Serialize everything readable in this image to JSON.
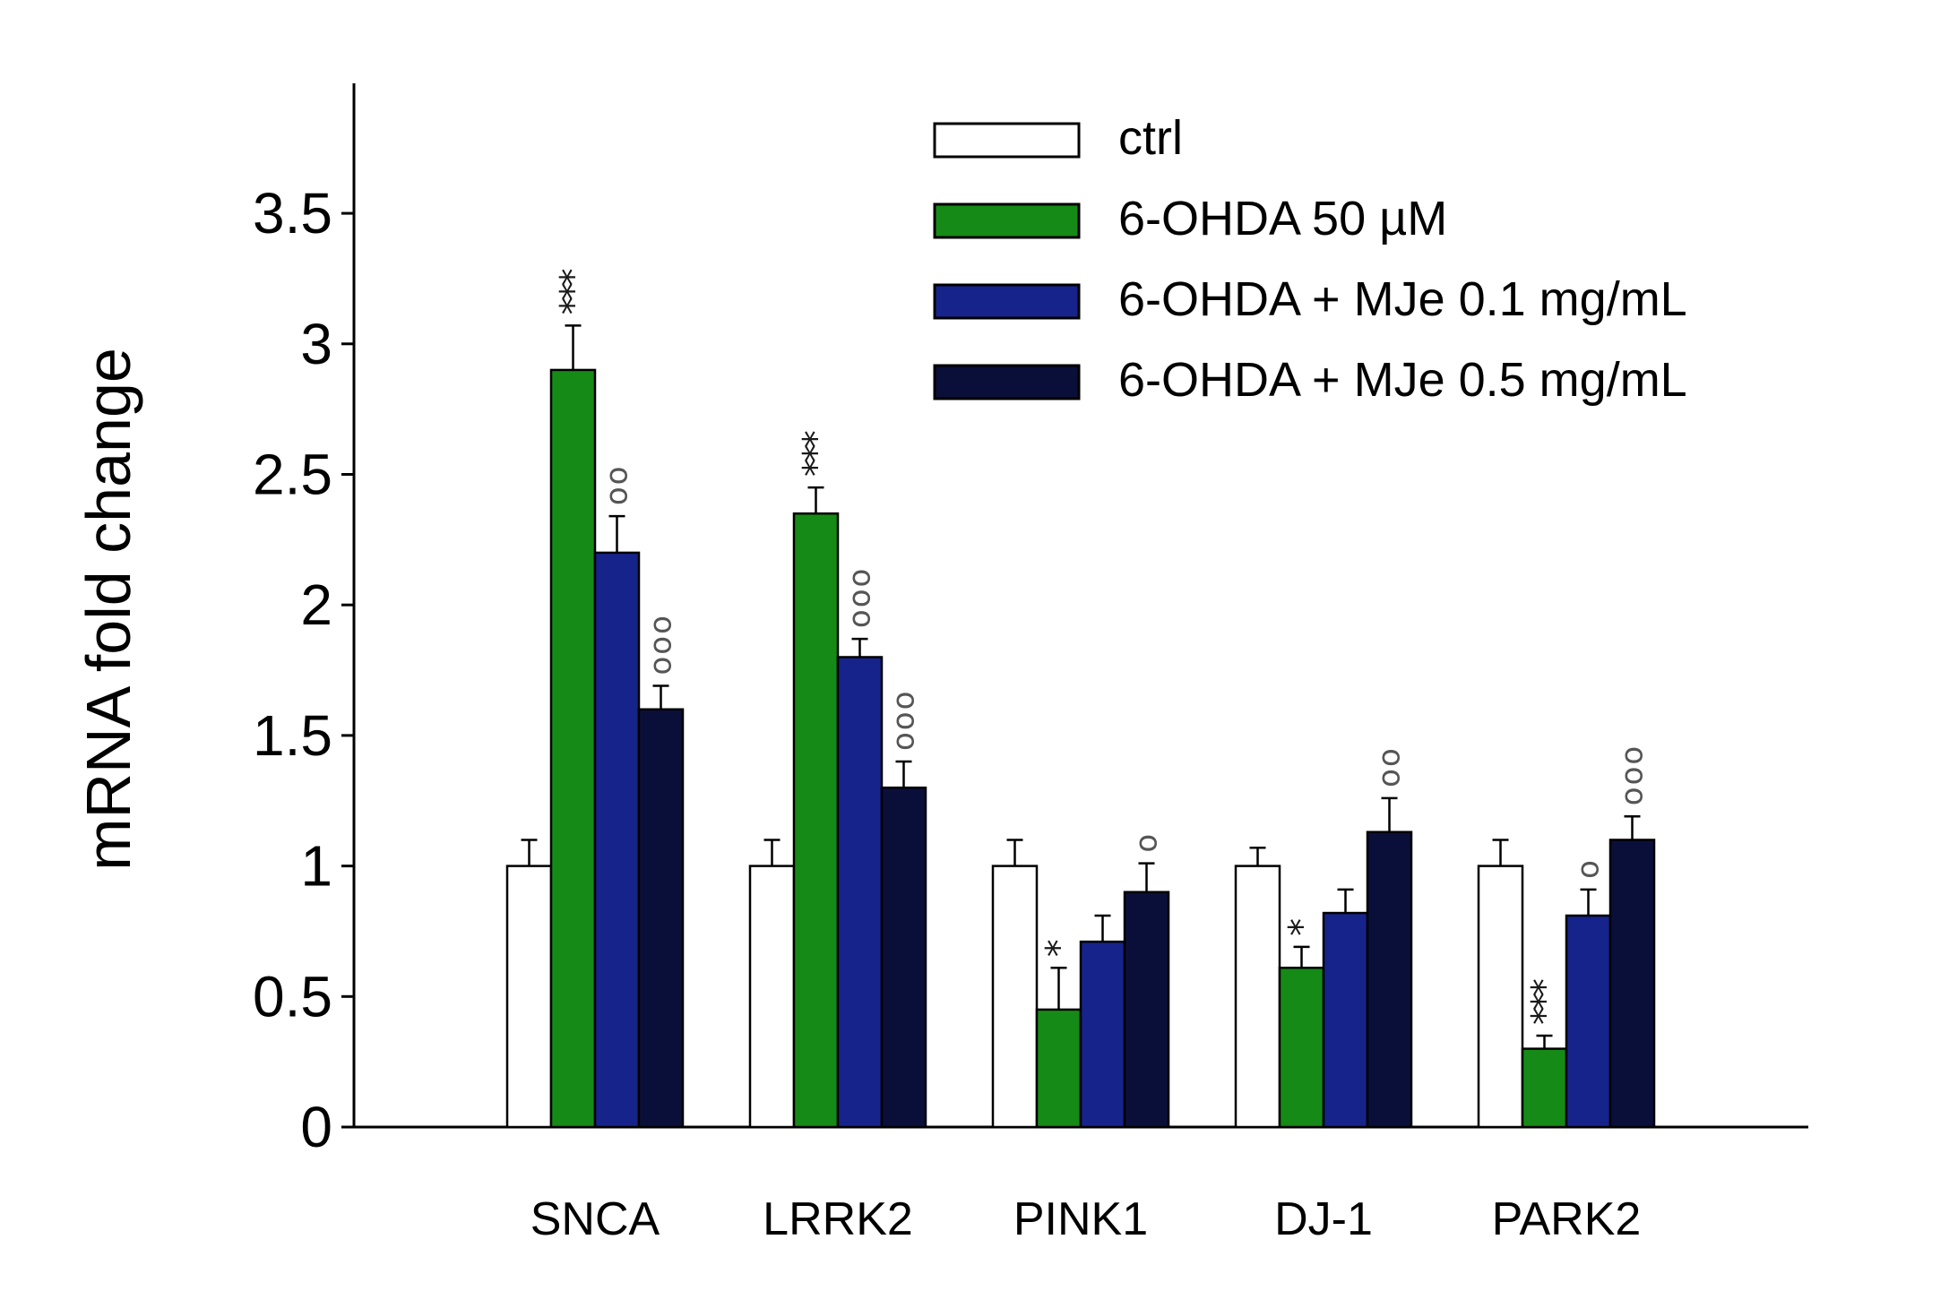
{
  "chart_data": {
    "type": "bar",
    "title": "",
    "xlabel": "",
    "ylabel": "mRNA fold change",
    "ylim": [
      0,
      4
    ],
    "yticks": [
      0,
      0.5,
      1,
      1.5,
      2,
      2.5,
      3,
      3.5
    ],
    "ytick_labels": [
      "0",
      "0.5",
      "1",
      "1.5",
      "2",
      "2.5",
      "3",
      "3.5"
    ],
    "categories": [
      "SNCA",
      "LRRK2",
      "PINK1",
      "DJ-1",
      "PARK2"
    ],
    "legend_position": "top-right",
    "series": [
      {
        "name": "ctrl",
        "color": "#ffffff",
        "values": [
          1.0,
          1.0,
          1.0,
          1.0,
          1.0
        ],
        "errors": [
          0.1,
          0.1,
          0.1,
          0.07,
          0.1
        ],
        "annotations": [
          "",
          "",
          "",
          "",
          ""
        ]
      },
      {
        "name": "6-OHDA 50 µM",
        "color": "#168a16",
        "values": [
          2.9,
          2.35,
          0.45,
          0.61,
          0.3
        ],
        "errors": [
          0.17,
          0.1,
          0.16,
          0.08,
          0.05
        ],
        "annotations": [
          "***",
          "***",
          "*",
          "*",
          "***"
        ]
      },
      {
        "name": "6-OHDA + MJe  0.1 mg/mL",
        "color": "#16238a",
        "values": [
          2.2,
          1.8,
          0.71,
          0.82,
          0.81
        ],
        "errors": [
          0.14,
          0.07,
          0.1,
          0.09,
          0.1
        ],
        "annotations": [
          "oo",
          "ooo",
          "",
          "",
          "o"
        ]
      },
      {
        "name": "6-OHDA + MJe  0.5 mg/mL",
        "color": "#0a0f3a",
        "values": [
          1.6,
          1.3,
          0.9,
          1.13,
          1.1
        ],
        "errors": [
          0.09,
          0.1,
          0.11,
          0.13,
          0.09
        ],
        "annotations": [
          "ooo",
          "ooo",
          "o",
          "oo",
          "ooo"
        ]
      }
    ]
  }
}
